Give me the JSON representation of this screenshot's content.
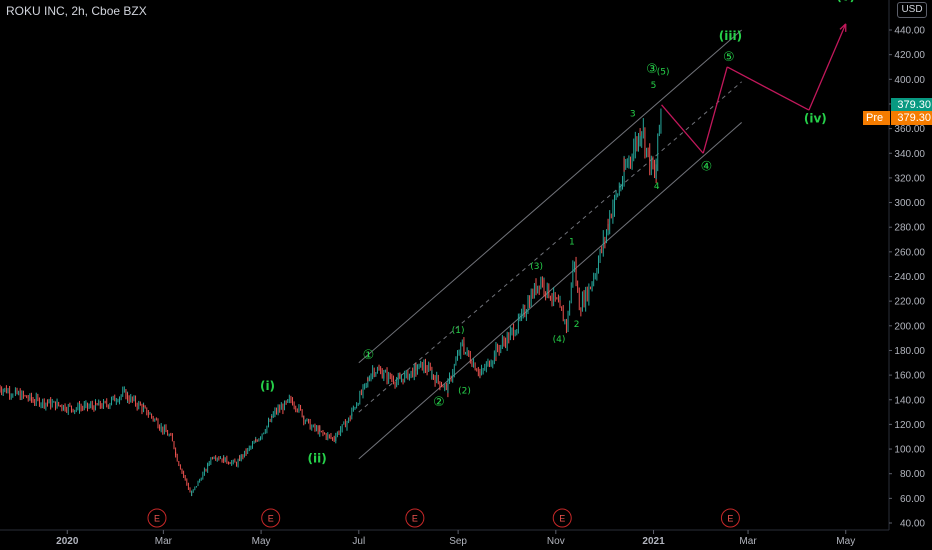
{
  "header": {
    "symbol_title": "ROKU INC, 2h, Cboe BZX",
    "currency": "USD"
  },
  "price_tags": {
    "last": "379.30",
    "pre_label": "Pre",
    "pre_value": "379.30"
  },
  "colors": {
    "background": "#000000",
    "candle_up": "#26a69a",
    "candle_down": "#ef5350",
    "wave_label": "#26d14a",
    "projection": "#c2185b",
    "channel": "#9598a1",
    "earnings_marker": "#c62828"
  },
  "chart_data": {
    "type": "candlestick",
    "title": "ROKU INC, 2h, Cboe BZX",
    "ylim": [
      40,
      460
    ],
    "y_ticks": [
      40,
      60,
      80,
      100,
      120,
      140,
      160,
      180,
      200,
      220,
      240,
      260,
      280,
      300,
      320,
      340,
      360,
      380,
      400,
      420,
      440
    ],
    "x_ticks": [
      {
        "label": "2020",
        "x": "2020-01-01"
      },
      {
        "label": "Mar",
        "x": "2020-03-01"
      },
      {
        "label": "May",
        "x": "2020-05-01"
      },
      {
        "label": "Jul",
        "x": "2020-07-01"
      },
      {
        "label": "Sep",
        "x": "2020-09-01"
      },
      {
        "label": "Nov",
        "x": "2020-11-01"
      },
      {
        "label": "2021",
        "x": "2021-01-01"
      },
      {
        "label": "Mar",
        "x": "2021-03-01"
      },
      {
        "label": "May",
        "x": "2021-05-01"
      }
    ],
    "price_path": [
      {
        "x": "2019-11-20",
        "y": 150
      },
      {
        "x": "2019-12-10",
        "y": 140
      },
      {
        "x": "2020-01-05",
        "y": 133
      },
      {
        "x": "2020-01-25",
        "y": 136
      },
      {
        "x": "2020-02-05",
        "y": 145
      },
      {
        "x": "2020-02-20",
        "y": 130
      },
      {
        "x": "2020-03-05",
        "y": 110
      },
      {
        "x": "2020-03-18",
        "y": 62
      },
      {
        "x": "2020-04-01",
        "y": 95
      },
      {
        "x": "2020-04-15",
        "y": 88
      },
      {
        "x": "2020-04-30",
        "y": 110
      },
      {
        "x": "2020-05-10",
        "y": 130
      },
      {
        "x": "2020-05-20",
        "y": 140
      },
      {
        "x": "2020-06-01",
        "y": 118
      },
      {
        "x": "2020-06-15",
        "y": 108
      },
      {
        "x": "2020-06-25",
        "y": 125
      },
      {
        "x": "2020-07-10",
        "y": 165
      },
      {
        "x": "2020-07-25",
        "y": 155
      },
      {
        "x": "2020-08-10",
        "y": 168
      },
      {
        "x": "2020-08-25",
        "y": 148
      },
      {
        "x": "2020-09-03",
        "y": 185
      },
      {
        "x": "2020-09-15",
        "y": 160
      },
      {
        "x": "2020-09-25",
        "y": 180
      },
      {
        "x": "2020-10-08",
        "y": 200
      },
      {
        "x": "2020-10-22",
        "y": 238
      },
      {
        "x": "2020-11-03",
        "y": 215
      },
      {
        "x": "2020-11-08",
        "y": 200
      },
      {
        "x": "2020-11-12",
        "y": 257
      },
      {
        "x": "2020-11-16",
        "y": 215
      },
      {
        "x": "2020-11-25",
        "y": 240
      },
      {
        "x": "2020-12-05",
        "y": 290
      },
      {
        "x": "2020-12-15",
        "y": 330
      },
      {
        "x": "2020-12-25",
        "y": 362
      },
      {
        "x": "2020-12-28",
        "y": 340
      },
      {
        "x": "2021-01-02",
        "y": 318
      },
      {
        "x": "2021-01-06",
        "y": 379.3
      }
    ],
    "projection": [
      {
        "x": "2021-01-06",
        "y": 379.3
      },
      {
        "x": "2021-02-01",
        "y": 340
      },
      {
        "x": "2021-02-16",
        "y": 410
      },
      {
        "x": "2021-04-08",
        "y": 375
      },
      {
        "x": "2021-05-01",
        "y": 445
      }
    ],
    "channel": {
      "upper": [
        {
          "x": "2020-07-01",
          "y": 170
        },
        {
          "x": "2021-02-25",
          "y": 440
        }
      ],
      "middle": [
        {
          "x": "2020-07-01",
          "y": 130
        },
        {
          "x": "2021-02-25",
          "y": 398
        }
      ],
      "lower": [
        {
          "x": "2020-07-01",
          "y": 92
        },
        {
          "x": "2021-02-25",
          "y": 365
        }
      ]
    },
    "wave_labels": [
      {
        "text": "(i)",
        "x": "2020-05-05",
        "y": 148
      },
      {
        "text": "(ii)",
        "x": "2020-06-05",
        "y": 89
      },
      {
        "text": "①",
        "x": "2020-07-07",
        "y": 173
      },
      {
        "text": "②",
        "x": "2020-08-20",
        "y": 135
      },
      {
        "text": "(1)",
        "x": "2020-09-01",
        "y": 194
      },
      {
        "text": "(2)",
        "x": "2020-09-05",
        "y": 145
      },
      {
        "text": "(3)",
        "x": "2020-10-20",
        "y": 246
      },
      {
        "text": "(4)",
        "x": "2020-11-03",
        "y": 187
      },
      {
        "text": "1",
        "x": "2020-11-11",
        "y": 266
      },
      {
        "text": "2",
        "x": "2020-11-14",
        "y": 199
      },
      {
        "text": "3",
        "x": "2020-12-19",
        "y": 370
      },
      {
        "text": "③",
        "x": "2020-12-31",
        "y": 405
      },
      {
        "text": "(5)",
        "x": "2021-01-07",
        "y": 404
      },
      {
        "text": "5",
        "x": "2021-01-01",
        "y": 393
      },
      {
        "text": "4",
        "x": "2021-01-03",
        "y": 311
      },
      {
        "text": "④",
        "x": "2021-02-03",
        "y": 326
      },
      {
        "text": "⑤",
        "x": "2021-02-17",
        "y": 415
      },
      {
        "text": "(iii)",
        "x": "2021-02-18",
        "y": 432
      },
      {
        "text": "(iv)",
        "x": "2021-04-12",
        "y": 365
      },
      {
        "text": "(v)",
        "x": "2021-05-01",
        "y": 464
      }
    ],
    "earnings_markers": [
      {
        "text": "E",
        "x": "2020-02-26"
      },
      {
        "text": "E",
        "x": "2020-05-07"
      },
      {
        "text": "E",
        "x": "2020-08-05"
      },
      {
        "text": "E",
        "x": "2020-11-05"
      },
      {
        "text": "E",
        "x": "2021-02-18"
      }
    ]
  }
}
